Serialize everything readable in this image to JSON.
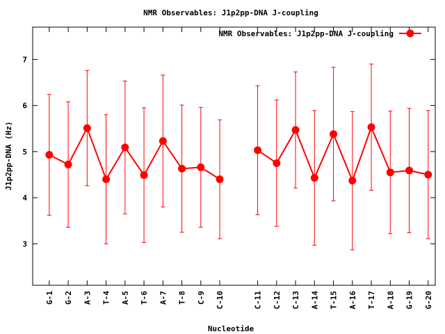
{
  "chart_data": {
    "type": "line",
    "title": "NMR Observables: J1p2pp-DNA J-coupling",
    "xlabel": "Nucleotide",
    "ylabel": "J1p2pp-DNA (Hz)",
    "ylim": [
      2.1,
      7.7
    ],
    "yticks": [
      3,
      4,
      5,
      6,
      7
    ],
    "grid": false,
    "legend_position": "top-right",
    "series_color": "#ff0000",
    "series": [
      {
        "name": "NMR Observables: J1p2pp-DNA J-coupling",
        "points": [
          {
            "label": "G-1",
            "x": 1,
            "y": 4.93,
            "err": 1.31
          },
          {
            "label": "G-2",
            "x": 2,
            "y": 4.72,
            "err": 1.36
          },
          {
            "label": "A-3",
            "x": 3,
            "y": 5.51,
            "err": 1.25
          },
          {
            "label": "T-4",
            "x": 4,
            "y": 4.4,
            "err": 1.4
          },
          {
            "label": "A-5",
            "x": 5,
            "y": 5.09,
            "err": 1.44
          },
          {
            "label": "T-6",
            "x": 6,
            "y": 4.49,
            "err": 1.46
          },
          {
            "label": "A-7",
            "x": 7,
            "y": 5.23,
            "err": 1.43
          },
          {
            "label": "T-8",
            "x": 8,
            "y": 4.63,
            "err": 1.38
          },
          {
            "label": "C-9",
            "x": 9,
            "y": 4.66,
            "err": 1.3
          },
          {
            "label": "C-10",
            "x": 10,
            "y": 4.4,
            "err": 1.29
          },
          {
            "label": "C-11",
            "x": 12,
            "y": 5.03,
            "err": 1.4
          },
          {
            "label": "C-12",
            "x": 13,
            "y": 4.75,
            "err": 1.37
          },
          {
            "label": "C-13",
            "x": 14,
            "y": 5.47,
            "err": 1.26
          },
          {
            "label": "A-14",
            "x": 15,
            "y": 4.43,
            "err": 1.46
          },
          {
            "label": "T-15",
            "x": 16,
            "y": 5.38,
            "err": 1.45
          },
          {
            "label": "A-16",
            "x": 17,
            "y": 4.37,
            "err": 1.5
          },
          {
            "label": "T-17",
            "x": 18,
            "y": 5.53,
            "err": 1.37
          },
          {
            "label": "A-18",
            "x": 19,
            "y": 4.55,
            "err": 1.33
          },
          {
            "label": "G-19",
            "x": 20,
            "y": 4.59,
            "err": 1.35
          },
          {
            "label": "G-20",
            "x": 21,
            "y": 4.5,
            "err": 1.39
          }
        ],
        "segments": [
          [
            0,
            9
          ],
          [
            10,
            19
          ]
        ]
      }
    ]
  }
}
